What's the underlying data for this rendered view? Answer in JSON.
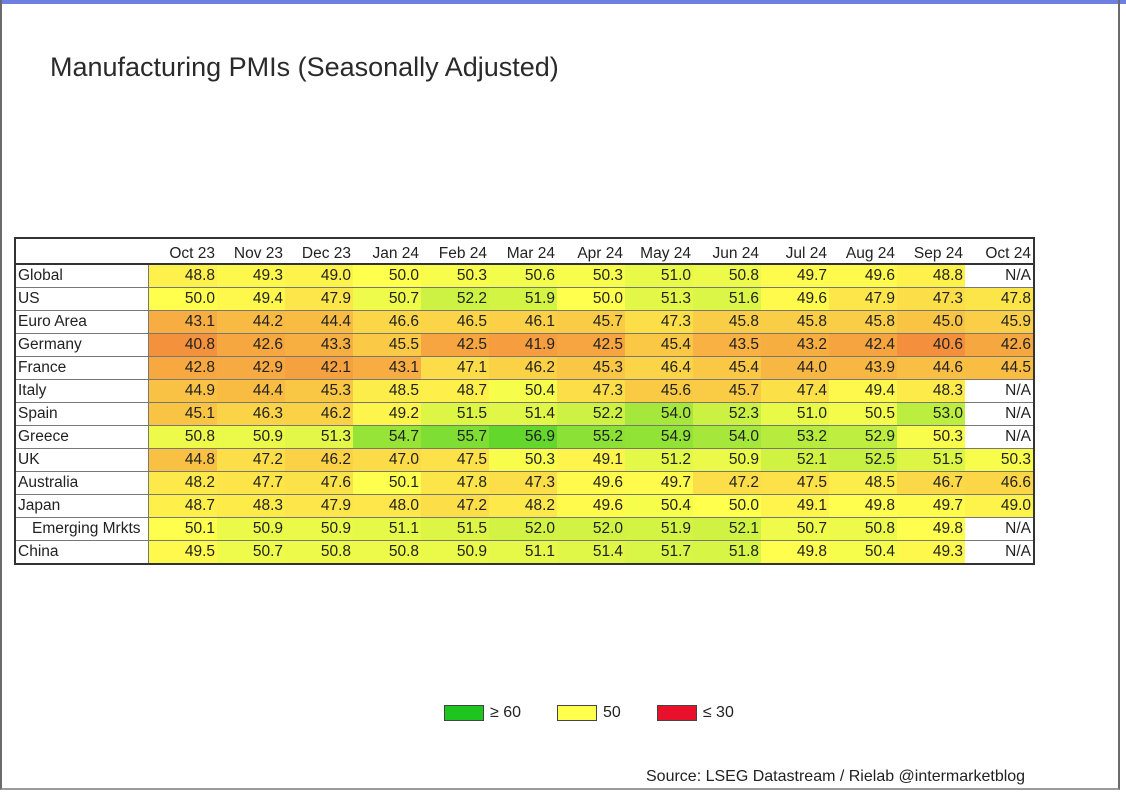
{
  "title": "Manufacturing PMIs (Seasonally Adjusted)",
  "source": "Source: LSEG Datastream / Rielab @intermarketblog",
  "legend": [
    {
      "label": "≥ 60",
      "color": "#1fc51f"
    },
    {
      "label": "50",
      "color": "#ffff4d"
    },
    {
      "label": "≤ 30",
      "color": "#e8102a"
    }
  ],
  "chart_data": {
    "type": "heatmap",
    "columns": [
      "Oct 23",
      "Nov 23",
      "Dec 23",
      "Jan 24",
      "Feb 24",
      "Mar 24",
      "Apr 24",
      "May 24",
      "Jun 24",
      "Jul 24",
      "Aug 24",
      "Sep 24",
      "Oct 24"
    ],
    "na_label": "N/A",
    "color_scale": {
      "min": 30,
      "mid": 50,
      "max": 60,
      "min_color": "#e8102a",
      "mid_color": "#ffff4d",
      "max_color": "#1fc51f"
    },
    "rows": [
      {
        "name": "Global",
        "values": [
          48.8,
          49.3,
          49.0,
          50.0,
          50.3,
          50.6,
          50.3,
          51.0,
          50.8,
          49.7,
          49.6,
          48.8,
          null
        ]
      },
      {
        "name": "US",
        "values": [
          50.0,
          49.4,
          47.9,
          50.7,
          52.2,
          51.9,
          50.0,
          51.3,
          51.6,
          49.6,
          47.9,
          47.3,
          47.8
        ]
      },
      {
        "name": "Euro Area",
        "values": [
          43.1,
          44.2,
          44.4,
          46.6,
          46.5,
          46.1,
          45.7,
          47.3,
          45.8,
          45.8,
          45.8,
          45.0,
          45.9
        ]
      },
      {
        "name": "Germany",
        "values": [
          40.8,
          42.6,
          43.3,
          45.5,
          42.5,
          41.9,
          42.5,
          45.4,
          43.5,
          43.2,
          42.4,
          40.6,
          42.6
        ]
      },
      {
        "name": "France",
        "values": [
          42.8,
          42.9,
          42.1,
          43.1,
          47.1,
          46.2,
          45.3,
          46.4,
          45.4,
          44.0,
          43.9,
          44.6,
          44.5
        ]
      },
      {
        "name": "Italy",
        "values": [
          44.9,
          44.4,
          45.3,
          48.5,
          48.7,
          50.4,
          47.3,
          45.6,
          45.7,
          47.4,
          49.4,
          48.3,
          null
        ]
      },
      {
        "name": "Spain",
        "values": [
          45.1,
          46.3,
          46.2,
          49.2,
          51.5,
          51.4,
          52.2,
          54.0,
          52.3,
          51.0,
          50.5,
          53.0,
          null
        ]
      },
      {
        "name": "Greece",
        "values": [
          50.8,
          50.9,
          51.3,
          54.7,
          55.7,
          56.9,
          55.2,
          54.9,
          54.0,
          53.2,
          52.9,
          50.3,
          null
        ]
      },
      {
        "name": "UK",
        "values": [
          44.8,
          47.2,
          46.2,
          47.0,
          47.5,
          50.3,
          49.1,
          51.2,
          50.9,
          52.1,
          52.5,
          51.5,
          50.3
        ]
      },
      {
        "name": "Australia",
        "values": [
          48.2,
          47.7,
          47.6,
          50.1,
          47.8,
          47.3,
          49.6,
          49.7,
          47.2,
          47.5,
          48.5,
          46.7,
          46.6
        ]
      },
      {
        "name": "Japan",
        "values": [
          48.7,
          48.3,
          47.9,
          48.0,
          47.2,
          48.2,
          49.6,
          50.4,
          50.0,
          49.1,
          49.8,
          49.7,
          49.0
        ]
      },
      {
        "name": "Emerging Mrkts",
        "indent": true,
        "values": [
          50.1,
          50.9,
          50.9,
          51.1,
          51.5,
          52.0,
          52.0,
          51.9,
          52.1,
          50.7,
          50.8,
          49.8,
          null
        ]
      },
      {
        "name": "China",
        "values": [
          49.5,
          50.7,
          50.8,
          50.8,
          50.9,
          51.1,
          51.4,
          51.7,
          51.8,
          49.8,
          50.4,
          49.3,
          null
        ]
      }
    ]
  }
}
